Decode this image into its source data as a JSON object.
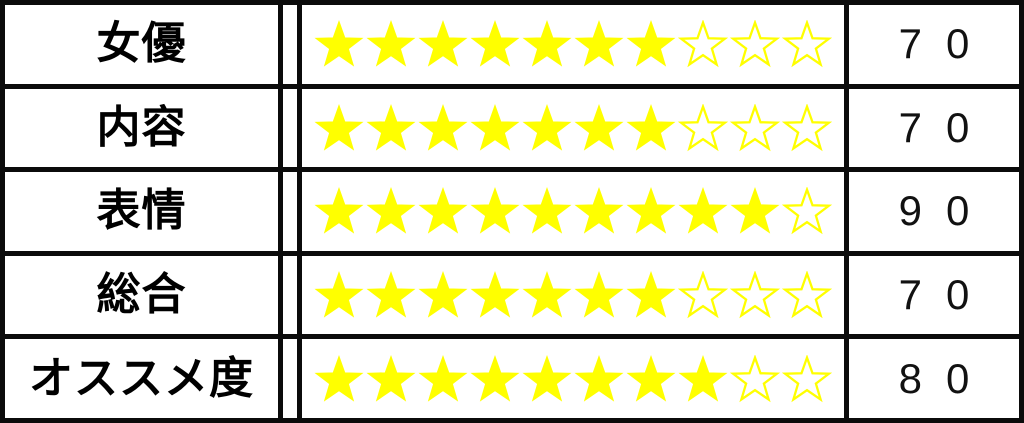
{
  "table": {
    "stars_total": 10,
    "star_color": "#ffff00",
    "border_color": "#0b0b0b",
    "star_filled_glyph": "★",
    "star_empty_glyph": "☆",
    "rows": [
      {
        "label": "女優",
        "stars_filled": 7,
        "score": "70"
      },
      {
        "label": "内容",
        "stars_filled": 7,
        "score": "70"
      },
      {
        "label": "表情",
        "stars_filled": 9,
        "score": "90"
      },
      {
        "label": "総合",
        "stars_filled": 7,
        "score": "70"
      },
      {
        "label": "オススメ度",
        "stars_filled": 8,
        "score": "80"
      }
    ]
  },
  "chart_data": {
    "type": "table",
    "title": "",
    "categories": [
      "女優",
      "内容",
      "表情",
      "総合",
      "オススメ度"
    ],
    "series": [
      {
        "name": "stars_filled_of_10",
        "values": [
          7,
          7,
          9,
          7,
          8
        ]
      },
      {
        "name": "score",
        "values": [
          70,
          70,
          90,
          70,
          80
        ]
      }
    ],
    "stars_total": 10,
    "legend_position": "none",
    "grid": false
  }
}
